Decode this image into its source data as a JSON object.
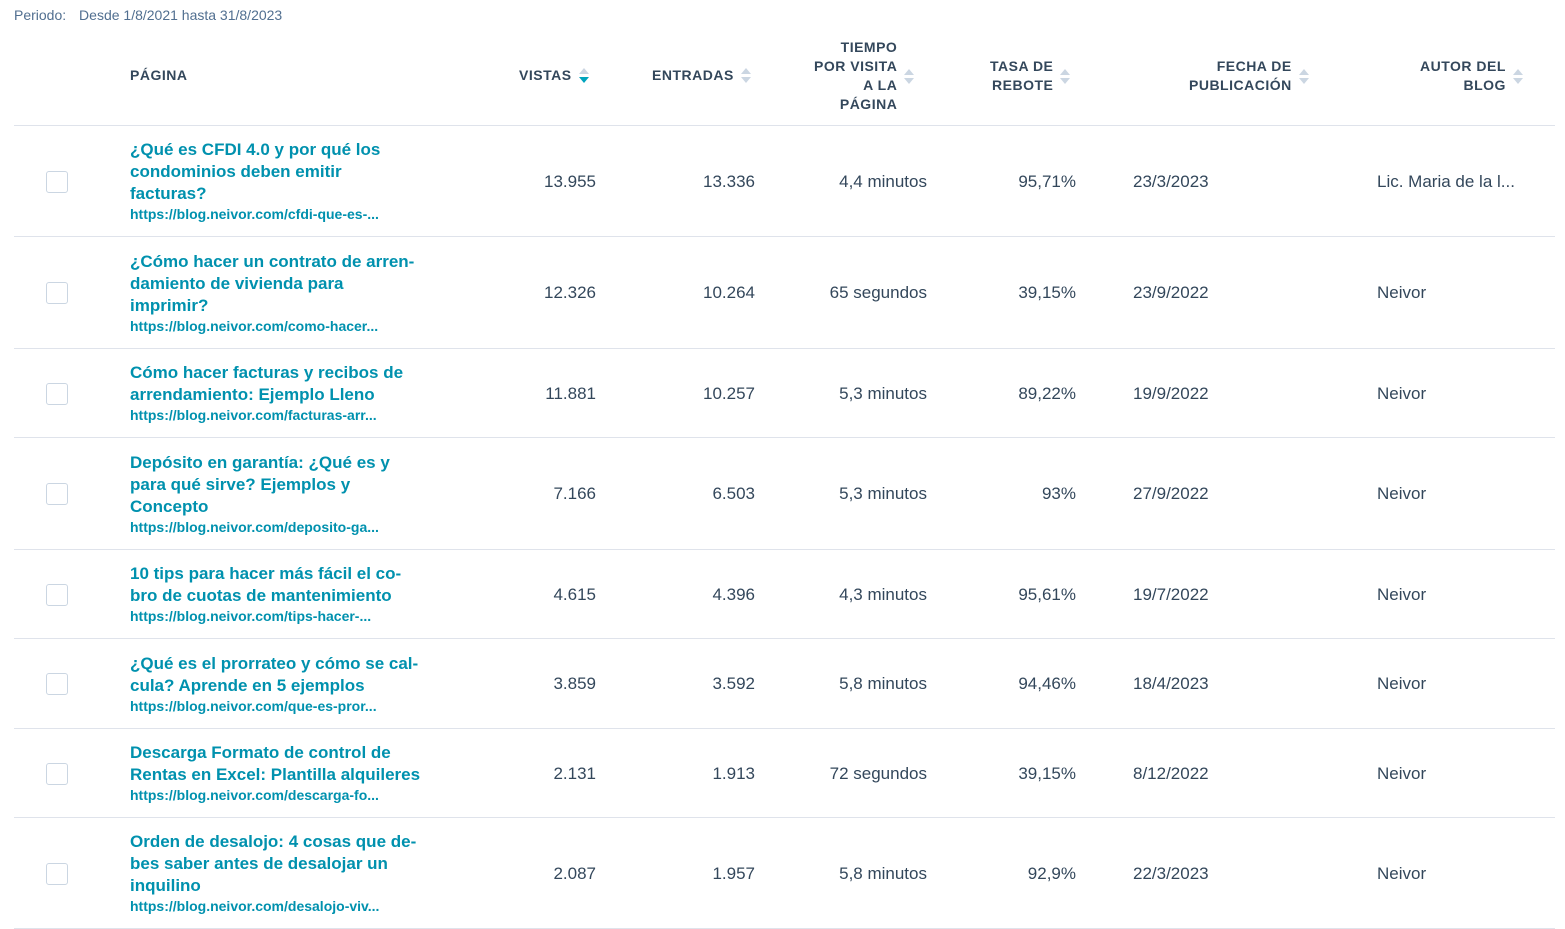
{
  "period": {
    "label": "Periodo:",
    "value": "Desde 1/8/2021 hasta 31/8/2023"
  },
  "columns": {
    "page": "PÁGINA",
    "views": "VISTAS",
    "entries": "ENTRADAS",
    "time": [
      "TIEMPO",
      "POR VISITA",
      "A LA",
      "PÁGINA"
    ],
    "bounce": [
      "TASA DE",
      "REBOTE"
    ],
    "date": [
      "FECHA DE",
      "PUBLICACIÓN"
    ],
    "author": [
      "AUTOR DEL",
      "BLOG"
    ]
  },
  "sort": {
    "active_column": "views",
    "direction": "descending",
    "active_color": "#00a4bd"
  },
  "rows": [
    {
      "title": [
        "¿Qué es CFDI 4.0 y por qué los",
        "condominios deben emitir",
        "facturas?"
      ],
      "url": "https://blog.neivor.com/cfdi-que-es-...",
      "views": "13.955",
      "entries": "13.336",
      "time": "4,4 minutos",
      "bounce": "95,71%",
      "date": "23/3/2023",
      "author": "Lic. Maria de la l..."
    },
    {
      "title": [
        "¿Cómo hacer un contrato de arren-",
        "damiento de vivienda para",
        "imprimir?"
      ],
      "url": "https://blog.neivor.com/como-hacer...",
      "views": "12.326",
      "entries": "10.264",
      "time": "65 segundos",
      "bounce": "39,15%",
      "date": "23/9/2022",
      "author": "Neivor"
    },
    {
      "title": [
        "Cómo hacer facturas y recibos de",
        "arrendamiento: Ejemplo Lleno"
      ],
      "url": "https://blog.neivor.com/facturas-arr...",
      "views": "11.881",
      "entries": "10.257",
      "time": "5,3 minutos",
      "bounce": "89,22%",
      "date": "19/9/2022",
      "author": "Neivor"
    },
    {
      "title": [
        "Depósito en garantía: ¿Qué es y",
        "para qué sirve? Ejemplos y",
        "Concepto"
      ],
      "url": "https://blog.neivor.com/deposito-ga...",
      "views": "7.166",
      "entries": "6.503",
      "time": "5,3 minutos",
      "bounce": "93%",
      "date": "27/9/2022",
      "author": "Neivor"
    },
    {
      "title": [
        "10 tips para hacer más fácil el co-",
        "bro de cuotas de mantenimiento"
      ],
      "url": "https://blog.neivor.com/tips-hacer-...",
      "views": "4.615",
      "entries": "4.396",
      "time": "4,3 minutos",
      "bounce": "95,61%",
      "date": "19/7/2022",
      "author": "Neivor"
    },
    {
      "title": [
        "¿Qué es el prorrateo y cómo se cal-",
        "cula? Aprende en 5 ejemplos"
      ],
      "url": "https://blog.neivor.com/que-es-pror...",
      "views": "3.859",
      "entries": "3.592",
      "time": "5,8 minutos",
      "bounce": "94,46%",
      "date": "18/4/2023",
      "author": "Neivor"
    },
    {
      "title": [
        "Descarga Formato de control de",
        "Rentas en Excel: Plantilla alquileres"
      ],
      "url": "https://blog.neivor.com/descarga-fo...",
      "views": "2.131",
      "entries": "1.913",
      "time": "72 segundos",
      "bounce": "39,15%",
      "date": "8/12/2022",
      "author": "Neivor"
    },
    {
      "title": [
        "Orden de desalojo: 4 cosas que de-",
        "bes saber antes de desalojar un",
        "inquilino"
      ],
      "url": "https://blog.neivor.com/desalojo-viv...",
      "views": "2.087",
      "entries": "1.957",
      "time": "5,8 minutos",
      "bounce": "92,9%",
      "date": "22/3/2023",
      "author": "Neivor"
    }
  ]
}
